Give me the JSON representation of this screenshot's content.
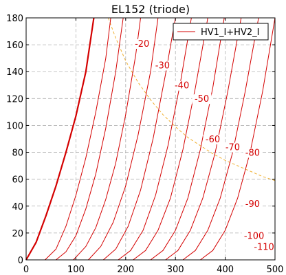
{
  "chart_data": {
    "type": "line",
    "title": "EL152 (triode)",
    "xlabel": "",
    "ylabel": "",
    "xlim": [
      0,
      500
    ],
    "ylim": [
      0,
      180
    ],
    "x_ticks": [
      0,
      100,
      200,
      300,
      400,
      500
    ],
    "y_ticks": [
      0,
      20,
      40,
      60,
      80,
      100,
      120,
      140,
      160,
      180
    ],
    "grid": true,
    "legend": {
      "placement": "top-right",
      "entries": [
        "HV1_I+HV2_I"
      ]
    },
    "colors": {
      "curves": "#d40000",
      "dissipation": "#f0b030",
      "grid": "#b0b0b0"
    },
    "series": [
      {
        "grid_bias": 0,
        "x": [
          0,
          20,
          40,
          60,
          80,
          100,
          120,
          136
        ],
        "y": [
          0,
          13,
          33,
          55,
          80,
          107,
          140,
          180
        ]
      },
      {
        "grid_bias": -10,
        "x": [
          38,
          60,
          80,
          100,
          120,
          140,
          160,
          170
        ],
        "y": [
          0,
          8,
          25,
          48,
          76,
          110,
          150,
          180
        ]
      },
      {
        "grid_bias": -20,
        "x": [
          60,
          80,
          100,
          120,
          140,
          160,
          180,
          195
        ],
        "y": [
          0,
          6,
          18,
          38,
          64,
          98,
          140,
          180
        ]
      },
      {
        "grid_bias": -30,
        "x": [
          95,
          120,
          140,
          160,
          180,
          200,
          220,
          230
        ],
        "y": [
          0,
          10,
          24,
          45,
          72,
          108,
          152,
          180
        ]
      },
      {
        "grid_bias": -40,
        "x": [
          125,
          150,
          175,
          200,
          225,
          250,
          265
        ],
        "y": [
          0,
          10,
          28,
          55,
          93,
          140,
          180
        ]
      },
      {
        "grid_bias": -50,
        "x": [
          155,
          180,
          205,
          230,
          255,
          280,
          300
        ],
        "y": [
          0,
          8,
          25,
          52,
          90,
          138,
          180
        ]
      },
      {
        "grid_bias": -60,
        "x": [
          185,
          210,
          235,
          260,
          285,
          310,
          332
        ],
        "y": [
          0,
          7,
          22,
          48,
          85,
          132,
          180
        ]
      },
      {
        "grid_bias": -70,
        "x": [
          215,
          240,
          265,
          290,
          315,
          340,
          365
        ],
        "y": [
          0,
          7,
          22,
          46,
          82,
          128,
          180
        ]
      },
      {
        "grid_bias": -80,
        "x": [
          250,
          275,
          300,
          325,
          350,
          375,
          398
        ],
        "y": [
          0,
          7,
          22,
          46,
          82,
          128,
          180
        ]
      },
      {
        "grid_bias": -90,
        "x": [
          280,
          305,
          330,
          355,
          380,
          405,
          432
        ],
        "y": [
          0,
          7,
          22,
          46,
          80,
          125,
          180
        ]
      },
      {
        "grid_bias": -100,
        "x": [
          315,
          340,
          365,
          390,
          415,
          440,
          467
        ],
        "y": [
          0,
          7,
          22,
          46,
          80,
          125,
          180
        ]
      },
      {
        "grid_bias": -110,
        "x": [
          350,
          375,
          400,
          425,
          450,
          475,
          500
        ],
        "y": [
          0,
          7,
          22,
          46,
          80,
          125,
          180
        ]
      }
    ],
    "dissipation_curve": {
      "x": [
        165,
        180,
        200,
        225,
        250,
        275,
        300,
        325,
        350,
        375,
        400,
        425,
        450,
        475,
        500
      ],
      "y": [
        180,
        165,
        148,
        132,
        119,
        108,
        99,
        91,
        85,
        79,
        74,
        70,
        66,
        62,
        59
      ]
    },
    "curve_labels": [
      {
        "text": "-20",
        "x": 233,
        "y": 159
      },
      {
        "text": "-30",
        "x": 274,
        "y": 143
      },
      {
        "text": "-40",
        "x": 313,
        "y": 128
      },
      {
        "text": "-50",
        "x": 353,
        "y": 118
      },
      {
        "text": "-60",
        "x": 375,
        "y": 88
      },
      {
        "text": "-70",
        "x": 415,
        "y": 82
      },
      {
        "text": "-80",
        "x": 455,
        "y": 78
      },
      {
        "text": "-90",
        "x": 455,
        "y": 40
      },
      {
        "text": "-100",
        "x": 458,
        "y": 16
      },
      {
        "text": "-110",
        "x": 478,
        "y": 8
      }
    ]
  }
}
